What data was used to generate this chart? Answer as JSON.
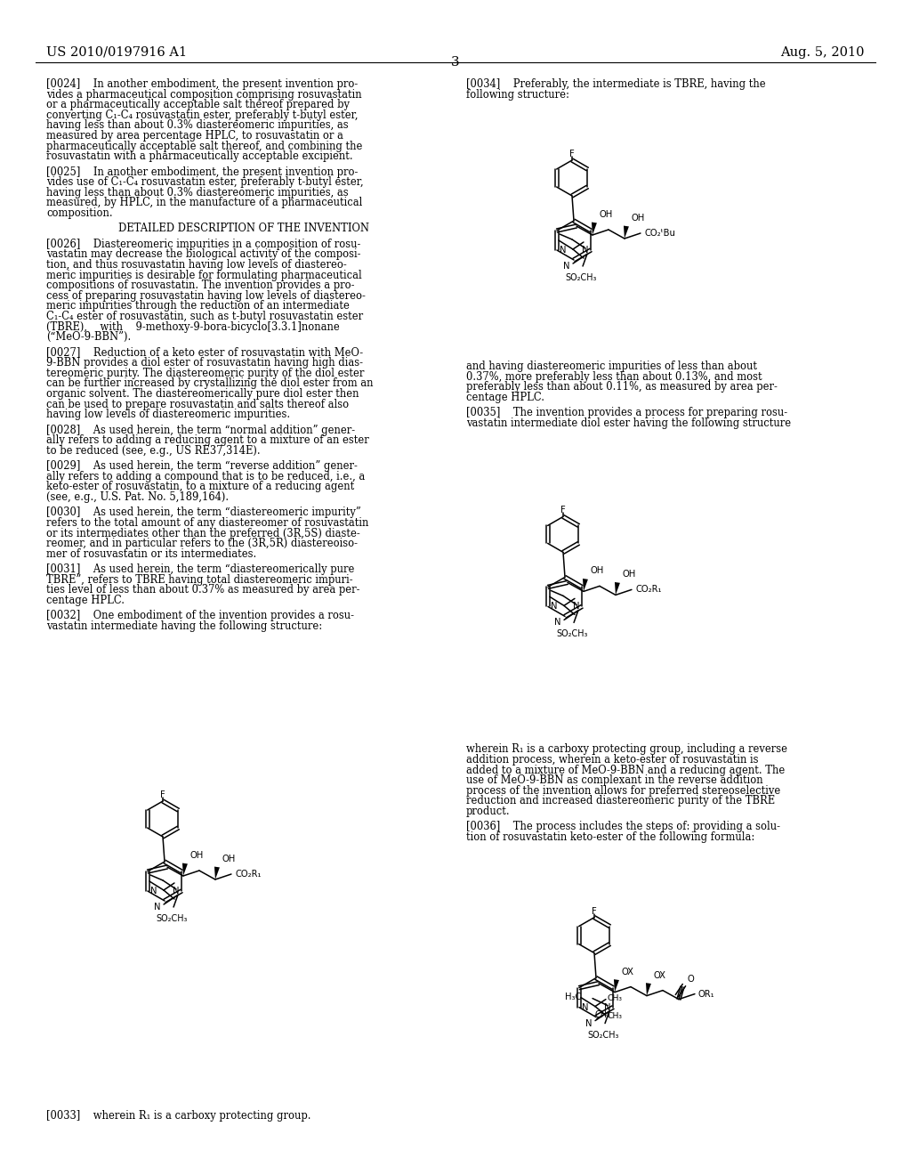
{
  "bg": "#ffffff",
  "header_left": "US 2010/0197916 A1",
  "header_right": "Aug. 5, 2010",
  "page_num": "3",
  "left_lines": [
    "[0024]    In another embodiment, the present invention pro-",
    "vides a pharmaceutical composition comprising rosuvastatin",
    "or a pharmaceutically acceptable salt thereof prepared by",
    "converting C₁-C₄ rosuvastatin ester, preferably t-butyl ester,",
    "having less than about 0.3% diastereomeric impurities, as",
    "measured by area percentage HPLC, to rosuvastatin or a",
    "pharmaceutically acceptable salt thereof, and combining the",
    "rosuvastatin with a pharmaceutically acceptable excipient.",
    "",
    "[0025]    In another embodiment, the present invention pro-",
    "vides use of C₁-C₄ rosuvastatin ester, preferably t-butyl ester,",
    "having less than about 0.3% diastereomeric impurities, as",
    "measured, by HPLC, in the manufacture of a pharmaceutical",
    "composition.",
    "",
    "SECTION:DETAILED DESCRIPTION OF THE INVENTION",
    "",
    "[0026]    Diastereomeric impurities in a composition of rosu-",
    "vastatin may decrease the biological activity of the composi-",
    "tion, and thus rosuvastatin having low levels of diastereo-",
    "meric impurities is desirable for formulating pharmaceutical",
    "compositions of rosuvastatin. The invention provides a pro-",
    "cess of preparing rosuvastatin having low levels of diastereo-",
    "meric impurities through the reduction of an intermediate",
    "C₁-C₄ ester of rosuvastatin, such as t-butyl rosuvastatin ester",
    "(TBRE),    with    9-methoxy-9-bora-bicyclo[3.3.1]nonane",
    "(“MeO-9-BBN”).",
    "",
    "[0027]    Reduction of a keto ester of rosuvastatin with MeO-",
    "9-BBN provides a diol ester of rosuvastatin having high dias-",
    "tereomeric purity. The diastereomeric purity of the diol ester",
    "can be further increased by crystallizing the diol ester from an",
    "organic solvent. The diastereomerically pure diol ester then",
    "can be used to prepare rosuvastatin and salts thereof also",
    "having low levels of diastereomeric impurities.",
    "",
    "[0028]    As used herein, the term “normal addition” gener-",
    "ally refers to adding a reducing agent to a mixture of an ester",
    "to be reduced (see, e.g., US RE37,314E).",
    "",
    "[0029]    As used herein, the term “reverse addition” gener-",
    "ally refers to adding a compound that is to be reduced, i.e., a",
    "keto-ester of rosuvastatin, to a mixture of a reducing agent",
    "(see, e.g., U.S. Pat. No. 5,189,164).",
    "",
    "[0030]    As used herein, the term “diastereomeric impurity”",
    "refers to the total amount of any diastereomer of rosuvastatin",
    "or its intermediates other than the preferred (3R,5S) diaste-",
    "reomer, and in particular refers to the (3R,5R) diastereoisо-",
    "mer of rosuvastatin or its intermediates.",
    "",
    "[0031]    As used herein, the term “diastereomerically pure",
    "TBRE”, refers to TBRE having total diastereomeric impuri-",
    "ties level of less than about 0.37% as measured by area per-",
    "centage HPLC.",
    "",
    "[0032]    One embodiment of the invention provides a rosu-",
    "vastatin intermediate having the following structure:"
  ],
  "right_lines": [
    "[0034]    Preferably, the intermediate is TBRE, having the",
    "following structure:"
  ],
  "right_lines2": [
    "and having diastereomeric impurities of less than about",
    "0.37%, more preferably less than about 0.13%, and most",
    "preferably less than about 0.11%, as measured by area per-",
    "centage HPLC.",
    "",
    "[0035]    The invention provides a process for preparing rosu-",
    "vastatin intermediate diol ester having the following structure"
  ],
  "right_lines3": [
    "wherein R₁ is a carboxy protecting group, including a reverse",
    "addition process, wherein a keto-ester of rosuvastatin is",
    "added to a mixture of MeO-9-BBN and a reducing agent. The",
    "use of MeO-9-BBN as complexant in the reverse addition",
    "process of the invention allows for preferred stereoselective",
    "reduction and increased diastereomeric purity of the TBRE",
    "product.",
    "",
    "[0036]    The process includes the steps of: providing a solu-",
    "tion of rosuvastatin keto-ester of the following formula:"
  ],
  "caption_left": "[0033]    wherein R₁ is a carboxy protecting group."
}
